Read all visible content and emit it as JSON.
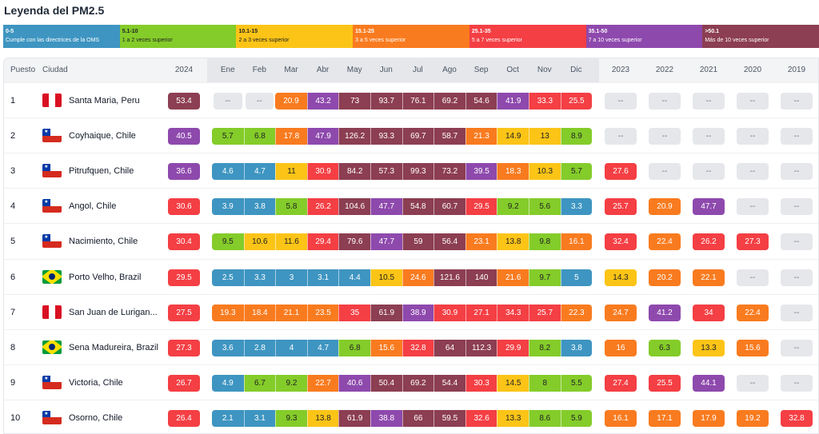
{
  "title": "Leyenda del PM2.5",
  "legend": [
    {
      "range": "0-5",
      "desc": "Cumple con las directrices de la OMS",
      "color": "#3e95c1",
      "dark": false
    },
    {
      "range": "5.1-10",
      "desc": "1 a 2 veces superior",
      "color": "#84cc2a",
      "dark": true
    },
    {
      "range": "10.1-15",
      "desc": "2 a 3 veces superior",
      "color": "#fbc417",
      "dark": true
    },
    {
      "range": "15.1-25",
      "desc": "3 a 5 veces superior",
      "color": "#f97b1f",
      "dark": false
    },
    {
      "range": "25.1-35",
      "desc": "5 a 7 veces superior",
      "color": "#f43f44",
      "dark": false
    },
    {
      "range": "35.1-50",
      "desc": "7 a 10 veces superior",
      "color": "#8e49ad",
      "dark": false
    },
    {
      "range": ">50.1",
      "desc": "Más de 10 veces superior",
      "color": "#8c3e52",
      "dark": false
    }
  ],
  "headers": {
    "rank": "Puesto",
    "city": "Ciudad",
    "current": "2024",
    "months": [
      "Ene",
      "Feb",
      "Mar",
      "Abr",
      "May",
      "Jun",
      "Jul",
      "Ago",
      "Sep",
      "Oct",
      "Nov",
      "Dic"
    ],
    "years": [
      "2023",
      "2022",
      "2021",
      "2020",
      "2019"
    ]
  },
  "na_label": "--",
  "rows": [
    {
      "rank": "1",
      "city": "Santa Maria, Peru",
      "flag": "peru",
      "current": 53.4,
      "months": [
        null,
        null,
        20.9,
        43.2,
        73,
        93.7,
        76.1,
        69.2,
        54.6,
        41.9,
        33.3,
        25.5
      ],
      "years": [
        null,
        null,
        null,
        null,
        null
      ]
    },
    {
      "rank": "2",
      "city": "Coyhaique, Chile",
      "flag": "chile",
      "current": 40.5,
      "months": [
        5.7,
        6.8,
        17.8,
        47.9,
        126.2,
        93.3,
        69.7,
        58.7,
        21.3,
        14.9,
        13,
        8.9
      ],
      "years": [
        null,
        null,
        null,
        null,
        null
      ]
    },
    {
      "rank": "3",
      "city": "Pitrufquen, Chile",
      "flag": "chile",
      "current": 36.6,
      "months": [
        4.6,
        4.7,
        11,
        30.9,
        84.2,
        57.3,
        99.3,
        73.2,
        39.5,
        18.3,
        10.3,
        5.7
      ],
      "years": [
        27.6,
        null,
        null,
        null,
        null
      ]
    },
    {
      "rank": "4",
      "city": "Angol, Chile",
      "flag": "chile",
      "current": 30.6,
      "months": [
        3.9,
        3.8,
        5.8,
        26.2,
        104.6,
        47.7,
        54.8,
        60.7,
        29.5,
        9.2,
        5.6,
        3.3
      ],
      "years": [
        25.7,
        20.9,
        47.7,
        null,
        null
      ]
    },
    {
      "rank": "5",
      "city": "Nacimiento, Chile",
      "flag": "chile",
      "current": 30.4,
      "months": [
        9.5,
        10.6,
        11.6,
        29.4,
        79.6,
        47.7,
        59,
        56.4,
        23.1,
        13.8,
        9.8,
        16.1
      ],
      "years": [
        32.4,
        22.4,
        26.2,
        27.3,
        null
      ]
    },
    {
      "rank": "6",
      "city": "Porto Velho, Brazil",
      "flag": "brazil",
      "current": 29.5,
      "months": [
        2.5,
        3.3,
        3,
        3.1,
        4.4,
        10.5,
        24.6,
        121.6,
        140,
        21.6,
        9.7,
        5
      ],
      "years": [
        14.3,
        20.2,
        22.1,
        null,
        null
      ]
    },
    {
      "rank": "7",
      "city": "San Juan de Lurigan...",
      "flag": "peru",
      "current": 27.5,
      "months": [
        19.3,
        18.4,
        21.1,
        23.5,
        35,
        61.9,
        38.9,
        30.9,
        27.1,
        34.3,
        25.7,
        22.3
      ],
      "years": [
        24.7,
        41.2,
        34,
        22.4,
        null
      ]
    },
    {
      "rank": "8",
      "city": "Sena Madureira, Brazil",
      "flag": "brazil",
      "current": 27.3,
      "months": [
        3.6,
        2.8,
        4,
        4.7,
        6.8,
        15.6,
        32.8,
        64,
        112.3,
        29.9,
        8.2,
        3.8
      ],
      "years": [
        16,
        6.3,
        13.3,
        15.6,
        null
      ]
    },
    {
      "rank": "9",
      "city": "Victoria, Chile",
      "flag": "chile",
      "current": 26.7,
      "months": [
        4.9,
        6.7,
        9.2,
        22.7,
        40.6,
        50.4,
        69.2,
        54.4,
        30.3,
        14.5,
        8,
        5.5
      ],
      "years": [
        27.4,
        25.5,
        44.1,
        null,
        null
      ]
    },
    {
      "rank": "10",
      "city": "Osorno, Chile",
      "flag": "chile",
      "current": 26.4,
      "months": [
        2.1,
        3.1,
        9.3,
        13.8,
        61.9,
        38.8,
        66,
        59.5,
        32.6,
        13.3,
        8.6,
        5.9
      ],
      "years": [
        16.1,
        17.1,
        17.9,
        19.2,
        32.8
      ]
    }
  ]
}
